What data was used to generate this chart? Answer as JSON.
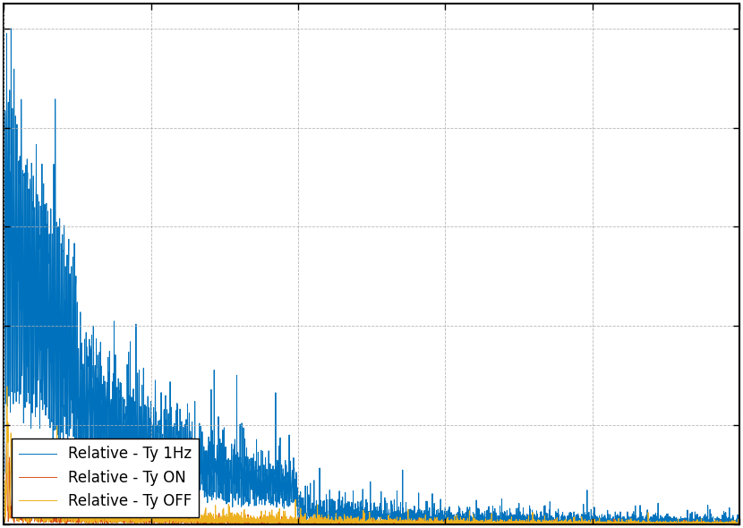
{
  "line1_label": "Relative - Ty 1Hz",
  "line2_label": "Relative - Ty ON",
  "line3_label": "Relative - Ty OFF",
  "line1_color": "#0072BD",
  "line2_color": "#D95319",
  "line3_color": "#EDB120",
  "background_color": "#FFFFFF",
  "grid_color": "#B0B0B0",
  "xlim": [
    0,
    500
  ],
  "ylim": [
    0,
    1
  ],
  "legend_loc": "lower left",
  "legend_fontsize": 12,
  "tick_fontsize": 11,
  "linewidth": 0.7,
  "figsize": [
    8.3,
    5.9
  ],
  "dpi": 100
}
